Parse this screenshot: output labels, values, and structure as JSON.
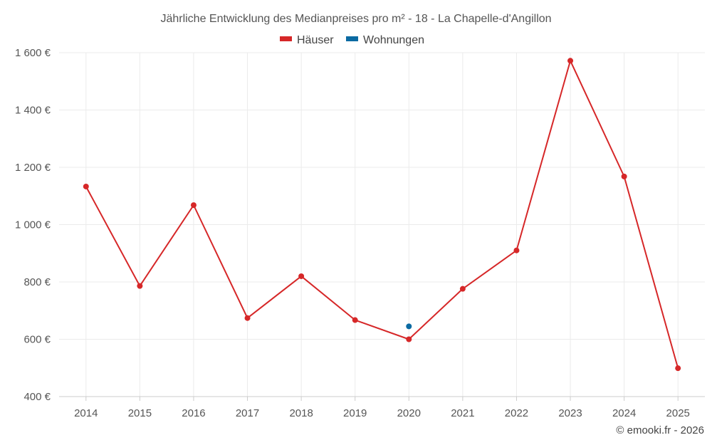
{
  "chart_data": {
    "type": "line",
    "title": "Jährliche Entwicklung des Medianpreises pro m² - 18 - La Chapelle-d'Angillon",
    "xlabel": "",
    "ylabel": "",
    "categories": [
      "2014",
      "2015",
      "2016",
      "2017",
      "2018",
      "2019",
      "2020",
      "2021",
      "2022",
      "2023",
      "2024",
      "2025"
    ],
    "ylim": [
      400,
      1600
    ],
    "yticks": [
      400,
      600,
      800,
      1000,
      1200,
      1400,
      1600
    ],
    "ytick_labels": [
      "400 €",
      "600 €",
      "800 €",
      "1 000 €",
      "1 200 €",
      "1 400 €",
      "1 600 €"
    ],
    "grid": true,
    "legend_position": "top-center",
    "series": [
      {
        "name": "Häuser",
        "color": "#d62728",
        "values": [
          1133,
          786,
          1068,
          674,
          820,
          667,
          600,
          776,
          910,
          1572,
          1168,
          499
        ]
      },
      {
        "name": "Wohnungen",
        "color": "#0b6aa2",
        "values": [
          null,
          null,
          null,
          null,
          null,
          null,
          645,
          null,
          null,
          null,
          null,
          null
        ]
      }
    ]
  },
  "credit": "© emooki.fr - 2026"
}
